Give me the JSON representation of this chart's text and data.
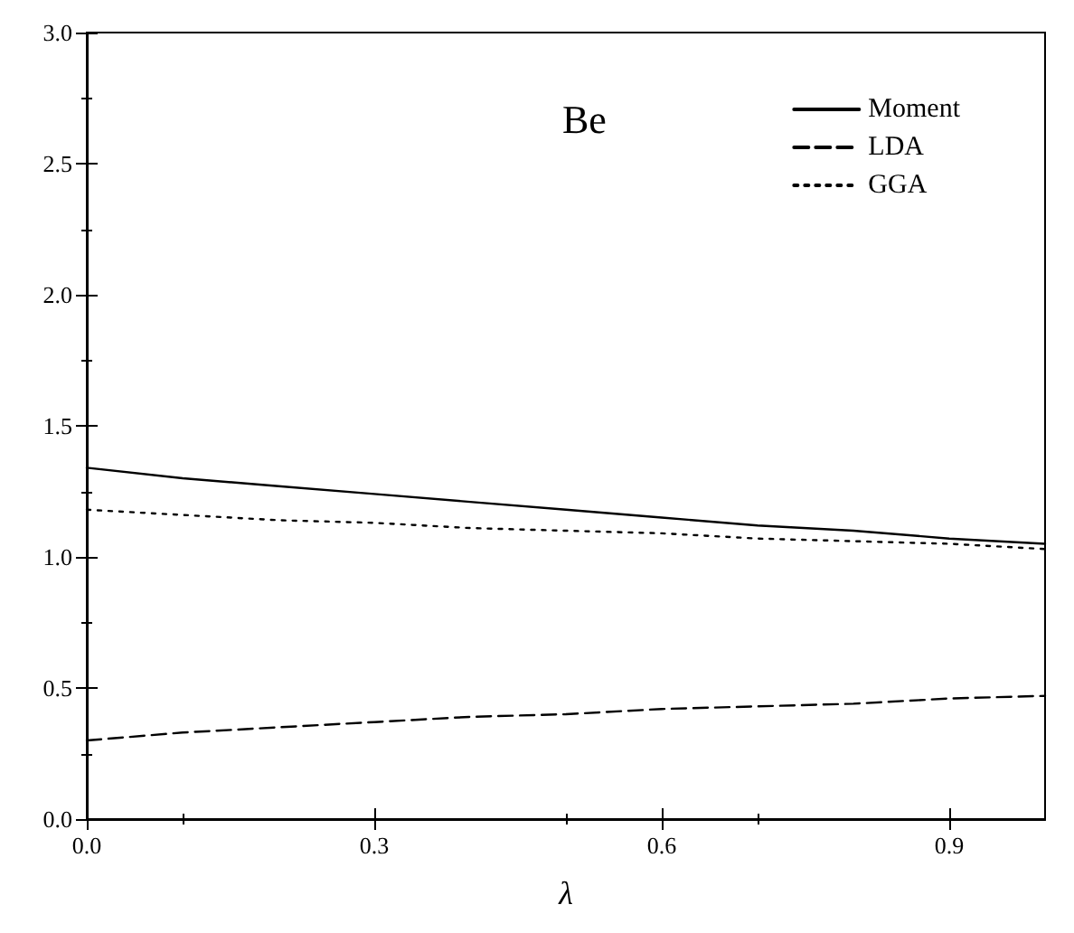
{
  "chart_data": {
    "type": "line",
    "xlabel": "λ",
    "annotations": [
      "Be"
    ],
    "x": [
      0,
      0.1,
      0.2,
      0.3,
      0.4,
      0.5,
      0.6,
      0.7,
      0.8,
      0.9,
      1.0
    ],
    "series": [
      {
        "name": "Moment",
        "color": "#000000",
        "line_style": "solid",
        "values": [
          1.34,
          1.3,
          1.27,
          1.24,
          1.21,
          1.18,
          1.15,
          1.12,
          1.1,
          1.07,
          1.05
        ]
      },
      {
        "name": "LDA",
        "color": "#000000",
        "line_style": "dashed",
        "values": [
          0.3,
          0.33,
          0.35,
          0.37,
          0.39,
          0.4,
          0.42,
          0.43,
          0.44,
          0.46,
          0.47
        ]
      },
      {
        "name": "GGA",
        "color": "#000000",
        "line_style": "dotted",
        "values": [
          1.18,
          1.16,
          1.14,
          1.13,
          1.11,
          1.1,
          1.09,
          1.07,
          1.06,
          1.05,
          1.03
        ]
      }
    ],
    "xlim": [
      0,
      1
    ],
    "xticks": [
      {
        "value": 0,
        "label": "0.0"
      },
      0.3,
      0.6,
      0.9
    ],
    "ylim": [
      0,
      3
    ],
    "yticks": [
      {
        "value": 0,
        "label": "0.0"
      },
      0.5,
      {
        "value": 1,
        "label": "1.0"
      },
      1.5,
      {
        "value": 2,
        "label": "2.0"
      },
      2.5,
      {
        "value": 3,
        "label": "3.0"
      }
    ],
    "legend": "top right",
    "grid": false,
    "marker": "none"
  }
}
